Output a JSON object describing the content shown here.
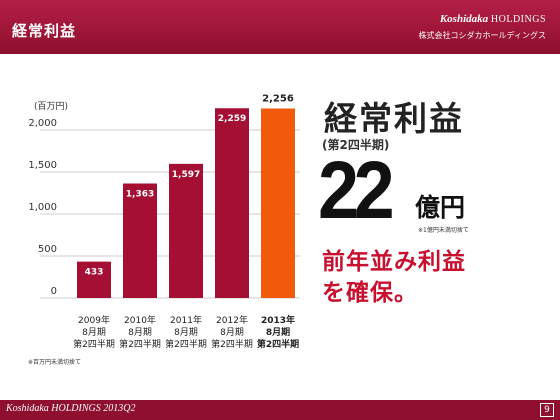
{
  "header": {
    "title": "経常利益",
    "logo_brand": "Koshidaka",
    "logo_holdings": "HOLDINGS",
    "logo_subtitle": "株式会社コシダカホールディングス"
  },
  "headline": {
    "title": "経常利益",
    "period": "(第2四半期)",
    "amount": "22",
    "amount_unit": "億円",
    "amount_note": "※1億円未満切捨て",
    "message_line1": "前年並み利益",
    "message_line2": "を確保。"
  },
  "footnote": "※百万円未満切捨て",
  "footer": {
    "text": "Koshidaka HOLDINGS 2013Q2",
    "page": "9"
  },
  "colors": {
    "brand": "#8e0f2e",
    "bar": "#a50f33",
    "highlight_bar": "#f05a0a",
    "message": "#c8102e"
  },
  "chart_data": {
    "type": "bar",
    "ylabel": "(百万円)",
    "ylim": [
      0,
      2000
    ],
    "yticks": [
      "0",
      "500",
      "1,000",
      "1,500",
      "2,000"
    ],
    "categories": [
      [
        "2009年",
        "8月期",
        "第2四半期"
      ],
      [
        "2010年",
        "8月期",
        "第2四半期"
      ],
      [
        "2011年",
        "8月期",
        "第2四半期"
      ],
      [
        "2012年",
        "8月期",
        "第2四半期"
      ],
      [
        "2013年",
        "8月期",
        "第2四半期"
      ]
    ],
    "values": [
      433,
      1363,
      1597,
      2259,
      2256
    ],
    "value_labels": [
      "433",
      "1,363",
      "1,597",
      "2,259",
      "2,256"
    ],
    "highlight_index": 4,
    "grid": true
  }
}
